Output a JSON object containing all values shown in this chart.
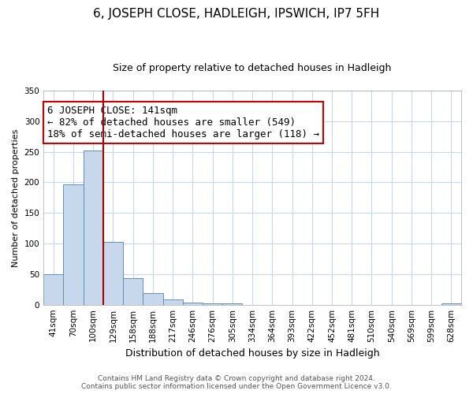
{
  "title": "6, JOSEPH CLOSE, HADLEIGH, IPSWICH, IP7 5FH",
  "subtitle": "Size of property relative to detached houses in Hadleigh",
  "xlabel": "Distribution of detached houses by size in Hadleigh",
  "ylabel": "Number of detached properties",
  "categories": [
    "41sqm",
    "70sqm",
    "100sqm",
    "129sqm",
    "158sqm",
    "188sqm",
    "217sqm",
    "246sqm",
    "276sqm",
    "305sqm",
    "334sqm",
    "364sqm",
    "393sqm",
    "422sqm",
    "452sqm",
    "481sqm",
    "510sqm",
    "540sqm",
    "569sqm",
    "599sqm",
    "628sqm"
  ],
  "values": [
    50,
    197,
    252,
    103,
    43,
    19,
    9,
    4,
    2,
    2,
    0,
    0,
    0,
    0,
    0,
    0,
    0,
    0,
    0,
    0,
    2
  ],
  "bar_color": "#c8d8ec",
  "bar_edge_color": "#6090b8",
  "vline_color": "#aa0000",
  "annotation_lines": [
    "6 JOSEPH CLOSE: 141sqm",
    "← 82% of detached houses are smaller (549)",
    "18% of semi-detached houses are larger (118) →"
  ],
  "ylim": [
    0,
    350
  ],
  "yticks": [
    0,
    50,
    100,
    150,
    200,
    250,
    300,
    350
  ],
  "footer_line1": "Contains HM Land Registry data © Crown copyright and database right 2024.",
  "footer_line2": "Contains public sector information licensed under the Open Government Licence v3.0.",
  "background_color": "#ffffff",
  "grid_color": "#c8d8e8",
  "title_fontsize": 11,
  "subtitle_fontsize": 9,
  "annot_fontsize": 9,
  "ylabel_fontsize": 8,
  "xlabel_fontsize": 9,
  "tick_fontsize": 7.5,
  "footer_fontsize": 6.5
}
